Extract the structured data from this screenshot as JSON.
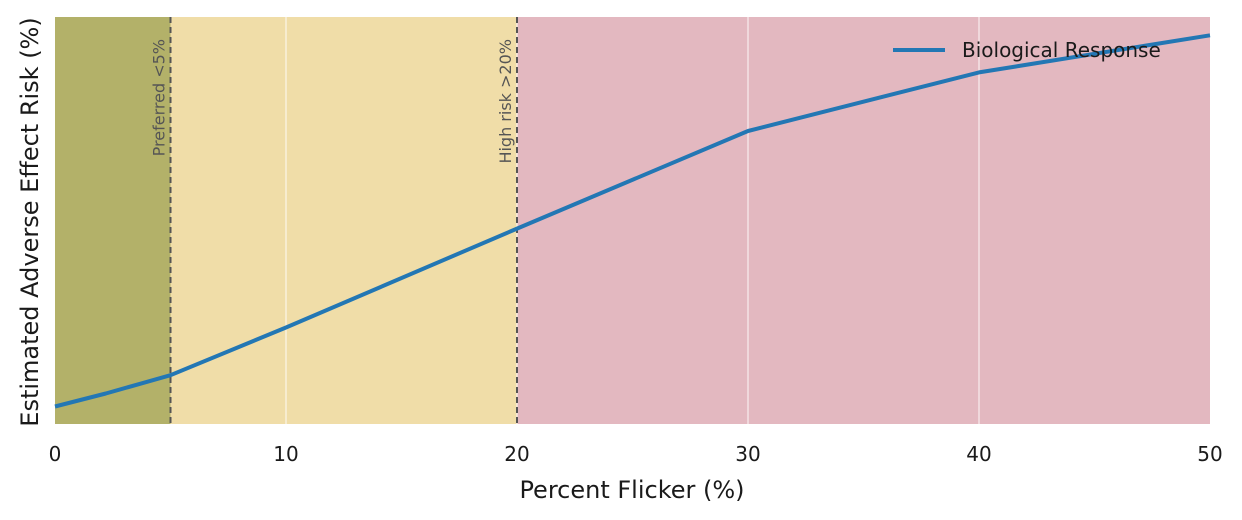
{
  "chart_data": {
    "type": "line",
    "title": "",
    "xlabel": "Percent Flicker (%)",
    "ylabel": "Estimated Adverse Effect Risk (%)",
    "xlim": [
      0,
      50
    ],
    "ylim": [
      0,
      1
    ],
    "x_ticks": [
      "0",
      "10",
      "20",
      "30",
      "40",
      "50"
    ],
    "y_ticks_visible": false,
    "grid": true,
    "legend_position": "top-right",
    "series": [
      {
        "name": "Biological Response",
        "color": "#2377b4",
        "x": [
          0,
          2.2,
          5,
          10,
          20,
          30,
          40,
          50
        ],
        "y": [
          0.043,
          0.075,
          0.12,
          0.237,
          0.48,
          0.72,
          0.864,
          0.955
        ]
      }
    ],
    "zones": [
      {
        "from": 0,
        "to": 5,
        "color": "#b3b169"
      },
      {
        "from": 5,
        "to": 20,
        "color": "#f0dda8"
      },
      {
        "from": 20,
        "to": 50,
        "color": "#e3b8c0"
      }
    ],
    "thresholds": [
      {
        "x": 5,
        "label": "Preferred <5%"
      },
      {
        "x": 20,
        "label": "High risk >20%"
      }
    ]
  }
}
